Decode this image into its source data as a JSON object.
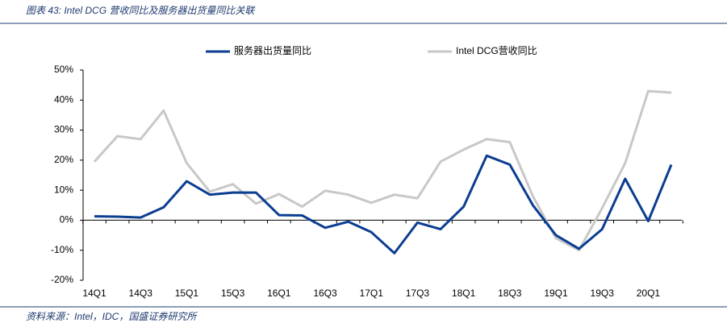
{
  "chart_data": {
    "type": "line",
    "title": "图表 43: Intel DCG 营收同比及服务器出货量同比关联",
    "source": "资料来源：Intel，IDC，国盛证券研究所",
    "categories": [
      "14Q1",
      null,
      "14Q3",
      null,
      "15Q1",
      null,
      "15Q3",
      null,
      "16Q1",
      null,
      "16Q3",
      null,
      "17Q1",
      null,
      "17Q3",
      null,
      "18Q1",
      null,
      "18Q3",
      null,
      "19Q1",
      null,
      "19Q3",
      null,
      "20Q1",
      null
    ],
    "series": [
      {
        "name": "服务器出货量同比",
        "color": "#0b3d91",
        "values": [
          1.3,
          1.2,
          0.9,
          4.3,
          13,
          8.5,
          9.2,
          9.2,
          1.7,
          1.6,
          -2.5,
          -0.5,
          -4,
          -11,
          -0.8,
          -3,
          4.5,
          21.5,
          18.5,
          5,
          -5,
          -9.5,
          -3,
          13.8,
          -0.3,
          18.5
        ]
      },
      {
        "name": "Intel DCG营收同比",
        "color": "#c8c8c8",
        "values": [
          19.5,
          28,
          27,
          36.5,
          19,
          9.5,
          12,
          5.5,
          8.7,
          4.5,
          9.8,
          8.5,
          5.8,
          8.5,
          7.3,
          19.5,
          23.5,
          27,
          26,
          8,
          -6,
          -10,
          4,
          19,
          43,
          42.5
        ]
      }
    ],
    "ylim": [
      -20,
      50
    ],
    "yticks": [
      {
        "value": -20,
        "label": "-20%"
      },
      {
        "value": -10,
        "label": "-10%"
      },
      {
        "value": 0,
        "label": "0%"
      },
      {
        "value": 10,
        "label": "10%"
      },
      {
        "value": 20,
        "label": "20%"
      },
      {
        "value": 30,
        "label": "30%"
      },
      {
        "value": 40,
        "label": "40%"
      },
      {
        "value": 50,
        "label": "50%"
      }
    ],
    "grid": false,
    "legend": "top"
  }
}
